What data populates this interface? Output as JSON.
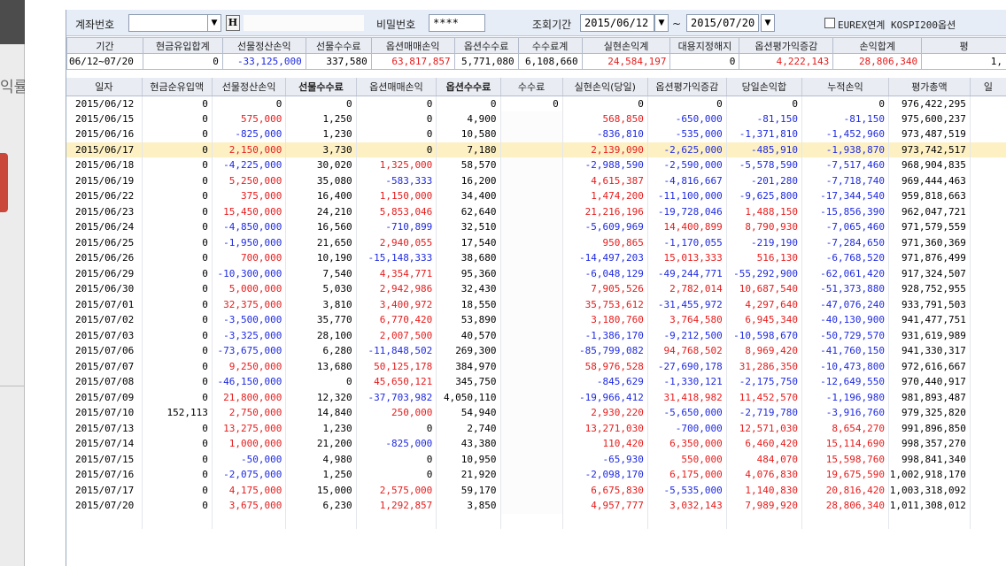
{
  "side_panel": {
    "label": "익률"
  },
  "toolbar": {
    "account_label": "계좌번호",
    "h_button": "H",
    "password_label": "비밀번호",
    "password_value": "****",
    "period_label": "조회기간",
    "date_from": "2015/06/12",
    "date_sep": "~",
    "date_to": "2015/07/20",
    "eurex_label": "EUREX연계 KOSPI200옵션"
  },
  "summary": {
    "headers": [
      "기간",
      "현금유입합계",
      "선물정산손익",
      "선물수수료",
      "옵션매매손익",
      "옵션수수료",
      "수수료계",
      "실현손익계",
      "대용지정해지",
      "옵션평가익증감",
      "손익합계",
      "평"
    ],
    "values": [
      "06/12~07/20",
      "0",
      "-33,125,000",
      "337,580",
      "63,817,857",
      "5,771,080",
      "6,108,660",
      "24,584,197",
      "0",
      "4,222,143",
      "28,806,340",
      "1,"
    ]
  },
  "grid": {
    "headers": [
      "일자",
      "현금순유입액",
      "선물정산손익",
      "선물수수료",
      "옵션매매손익",
      "옵션수수료",
      "수수료",
      "실현손익(당일)",
      "옵션평가익증감",
      "당일손익합",
      "누적손익",
      "평가총액",
      "일"
    ],
    "rows": [
      [
        "2015/06/12",
        "0",
        "0",
        "0",
        "0",
        "0",
        "0",
        "0",
        "0",
        "0",
        "0",
        "976,422,295"
      ],
      [
        "2015/06/15",
        "0",
        "575,000",
        "1,250",
        "0",
        "4,900",
        "",
        "568,850",
        "-650,000",
        "-81,150",
        "-81,150",
        "975,600,237"
      ],
      [
        "2015/06/16",
        "0",
        "-825,000",
        "1,230",
        "0",
        "10,580",
        "",
        "-836,810",
        "-535,000",
        "-1,371,810",
        "-1,452,960",
        "973,487,519"
      ],
      [
        "2015/06/17",
        "0",
        "2,150,000",
        "3,730",
        "0",
        "7,180",
        "",
        "2,139,090",
        "-2,625,000",
        "-485,910",
        "-1,938,870",
        "973,742,517"
      ],
      [
        "2015/06/18",
        "0",
        "-4,225,000",
        "30,020",
        "1,325,000",
        "58,570",
        "",
        "-2,988,590",
        "-2,590,000",
        "-5,578,590",
        "-7,517,460",
        "968,904,835"
      ],
      [
        "2015/06/19",
        "0",
        "5,250,000",
        "35,080",
        "-583,333",
        "16,200",
        "",
        "4,615,387",
        "-4,816,667",
        "-201,280",
        "-7,718,740",
        "969,444,463"
      ],
      [
        "2015/06/22",
        "0",
        "375,000",
        "16,400",
        "1,150,000",
        "34,400",
        "",
        "1,474,200",
        "-11,100,000",
        "-9,625,800",
        "-17,344,540",
        "959,818,663"
      ],
      [
        "2015/06/23",
        "0",
        "15,450,000",
        "24,210",
        "5,853,046",
        "62,640",
        "",
        "21,216,196",
        "-19,728,046",
        "1,488,150",
        "-15,856,390",
        "962,047,721"
      ],
      [
        "2015/06/24",
        "0",
        "-4,850,000",
        "16,560",
        "-710,899",
        "32,510",
        "",
        "-5,609,969",
        "14,400,899",
        "8,790,930",
        "-7,065,460",
        "971,579,559"
      ],
      [
        "2015/06/25",
        "0",
        "-1,950,000",
        "21,650",
        "2,940,055",
        "17,540",
        "",
        "950,865",
        "-1,170,055",
        "-219,190",
        "-7,284,650",
        "971,360,369"
      ],
      [
        "2015/06/26",
        "0",
        "700,000",
        "10,190",
        "-15,148,333",
        "38,680",
        "",
        "-14,497,203",
        "15,013,333",
        "516,130",
        "-6,768,520",
        "971,876,499"
      ],
      [
        "2015/06/29",
        "0",
        "-10,300,000",
        "7,540",
        "4,354,771",
        "95,360",
        "",
        "-6,048,129",
        "-49,244,771",
        "-55,292,900",
        "-62,061,420",
        "917,324,507"
      ],
      [
        "2015/06/30",
        "0",
        "5,000,000",
        "5,030",
        "2,942,986",
        "32,430",
        "",
        "7,905,526",
        "2,782,014",
        "10,687,540",
        "-51,373,880",
        "928,752,955"
      ],
      [
        "2015/07/01",
        "0",
        "32,375,000",
        "3,810",
        "3,400,972",
        "18,550",
        "",
        "35,753,612",
        "-31,455,972",
        "4,297,640",
        "-47,076,240",
        "933,791,503"
      ],
      [
        "2015/07/02",
        "0",
        "-3,500,000",
        "35,770",
        "6,770,420",
        "53,890",
        "",
        "3,180,760",
        "3,764,580",
        "6,945,340",
        "-40,130,900",
        "941,477,751"
      ],
      [
        "2015/07/03",
        "0",
        "-3,325,000",
        "28,100",
        "2,007,500",
        "40,570",
        "",
        "-1,386,170",
        "-9,212,500",
        "-10,598,670",
        "-50,729,570",
        "931,619,989"
      ],
      [
        "2015/07/06",
        "0",
        "-73,675,000",
        "6,280",
        "-11,848,502",
        "269,300",
        "",
        "-85,799,082",
        "94,768,502",
        "8,969,420",
        "-41,760,150",
        "941,330,317"
      ],
      [
        "2015/07/07",
        "0",
        "9,250,000",
        "13,680",
        "50,125,178",
        "384,970",
        "",
        "58,976,528",
        "-27,690,178",
        "31,286,350",
        "-10,473,800",
        "972,616,667"
      ],
      [
        "2015/07/08",
        "0",
        "-46,150,000",
        "0",
        "45,650,121",
        "345,750",
        "",
        "-845,629",
        "-1,330,121",
        "-2,175,750",
        "-12,649,550",
        "970,440,917"
      ],
      [
        "2015/07/09",
        "0",
        "21,800,000",
        "12,320",
        "-37,703,982",
        "4,050,110",
        "",
        "-19,966,412",
        "31,418,982",
        "11,452,570",
        "-1,196,980",
        "981,893,487"
      ],
      [
        "2015/07/10",
        "152,113",
        "2,750,000",
        "14,840",
        "250,000",
        "54,940",
        "",
        "2,930,220",
        "-5,650,000",
        "-2,719,780",
        "-3,916,760",
        "979,325,820"
      ],
      [
        "2015/07/13",
        "0",
        "13,275,000",
        "1,230",
        "0",
        "2,740",
        "",
        "13,271,030",
        "-700,000",
        "12,571,030",
        "8,654,270",
        "991,896,850"
      ],
      [
        "2015/07/14",
        "0",
        "1,000,000",
        "21,200",
        "-825,000",
        "43,380",
        "",
        "110,420",
        "6,350,000",
        "6,460,420",
        "15,114,690",
        "998,357,270"
      ],
      [
        "2015/07/15",
        "0",
        "-50,000",
        "4,980",
        "0",
        "10,950",
        "",
        "-65,930",
        "550,000",
        "484,070",
        "15,598,760",
        "998,841,340"
      ],
      [
        "2015/07/16",
        "0",
        "-2,075,000",
        "1,250",
        "0",
        "21,920",
        "",
        "-2,098,170",
        "6,175,000",
        "4,076,830",
        "19,675,590",
        "1,002,918,170"
      ],
      [
        "2015/07/17",
        "0",
        "4,175,000",
        "15,000",
        "2,575,000",
        "59,170",
        "",
        "6,675,830",
        "-5,535,000",
        "1,140,830",
        "20,816,420",
        "1,003,318,092"
      ],
      [
        "2015/07/20",
        "0",
        "3,675,000",
        "6,230",
        "1,292,857",
        "3,850",
        "",
        "4,957,777",
        "3,032,143",
        "7,989,920",
        "28,806,340",
        "1,011,308,012"
      ]
    ],
    "selected_row": 3
  },
  "colors": {
    "negative": "#1f2ae0",
    "positive": "#e61c1c",
    "selected_row": "#fdf1c4",
    "header_bg": "#e9ecf3"
  }
}
